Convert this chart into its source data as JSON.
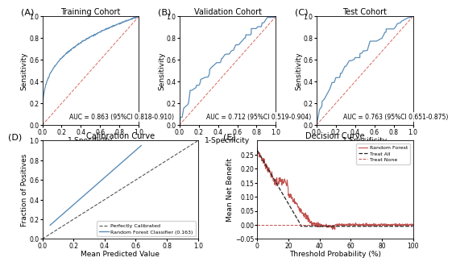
{
  "panel_A_title": "Training Cohort",
  "panel_B_title": "Validation Cohort",
  "panel_C_title": "Test Cohort",
  "panel_D_title": "Calibration Curve",
  "panel_E_title": "Decision Curve",
  "auc_A": "AUC = 0.863 (95%CI 0.818-0.910)",
  "auc_B": "AUC = 0.712 (95%CI 0.519-0.904)",
  "auc_C": "AUC = 0.763 (95%CI 0.651-0.875)",
  "roc_color": "#5B8DB8",
  "diag_color": "#D9726B",
  "calib_rf_color": "#5B8DB8",
  "calib_diag_color": "#555555",
  "dc_rf_color": "#C0504D",
  "dc_treat_all_color": "#222222",
  "dc_treat_none_color": "#C0504D",
  "xlabel_roc": "1-Specificity",
  "ylabel_roc": "Sensitivity",
  "xlabel_calib": "Mean Predicted Value",
  "ylabel_calib": "Fraction of Positives",
  "xlabel_dc": "Threshold Probability (%)",
  "ylabel_dc": "Mean Net Benefit",
  "calib_legend_diag": "Perfectly Calibrated",
  "calib_legend_rf": "Random Forest Classifier (0.163)",
  "dc_legend_rf": "Random Forest",
  "dc_legend_treat_all": "Treat All",
  "dc_legend_treat_none": "Treat None",
  "background_color": "#ffffff",
  "axes_bg_color": "#ffffff",
  "panel_label_fontsize": 8,
  "title_fontsize": 7,
  "tick_fontsize": 5.5,
  "label_fontsize": 6.5,
  "auc_fontsize": 5.5
}
